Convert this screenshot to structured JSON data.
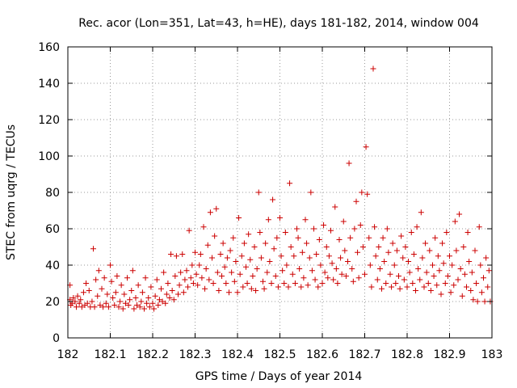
{
  "chart_data": {
    "type": "scatter",
    "title": "Rec. acor (Lon=351, Lat=43, h=HE), days 181-182, 2014, window 004",
    "xlabel": "GPS time / Days of year 2014",
    "ylabel": "STEC from uqrg / TECUs",
    "xlim": [
      182,
      183
    ],
    "ylim": [
      0,
      160
    ],
    "xticks": [
      "182",
      "182.1",
      "182.2",
      "182.3",
      "182.4",
      "182.5",
      "182.6",
      "182.7",
      "182.8",
      "182.9",
      "183"
    ],
    "xtick_values": [
      182,
      182.1,
      182.2,
      182.3,
      182.4,
      182.5,
      182.6,
      182.7,
      182.8,
      182.9,
      183
    ],
    "yticks": [
      "0",
      "20",
      "40",
      "60",
      "80",
      "100",
      "120",
      "140",
      "160"
    ],
    "ytick_values": [
      0,
      20,
      40,
      60,
      80,
      100,
      120,
      140,
      160
    ],
    "grid": true,
    "marker": "+",
    "color": "#cc0000",
    "points": [
      [
        182.005,
        29
      ],
      [
        182.005,
        21
      ],
      [
        182.007,
        18
      ],
      [
        182.01,
        19
      ],
      [
        182.013,
        22
      ],
      [
        182.017,
        20
      ],
      [
        182.02,
        17
      ],
      [
        182.023,
        23
      ],
      [
        182.027,
        19
      ],
      [
        182.03,
        21
      ],
      [
        182.033,
        17
      ],
      [
        182.037,
        25
      ],
      [
        182.04,
        18
      ],
      [
        182.043,
        30
      ],
      [
        182.046,
        19
      ],
      [
        182.05,
        26
      ],
      [
        182.053,
        17
      ],
      [
        182.057,
        20
      ],
      [
        182.06,
        49
      ],
      [
        182.063,
        17
      ],
      [
        182.066,
        32
      ],
      [
        182.07,
        23
      ],
      [
        182.073,
        37
      ],
      [
        182.076,
        18
      ],
      [
        182.08,
        27
      ],
      [
        182.083,
        17
      ],
      [
        182.086,
        33
      ],
      [
        182.09,
        19
      ],
      [
        182.093,
        24
      ],
      [
        182.096,
        17
      ],
      [
        182.1,
        40
      ],
      [
        182.103,
        31
      ],
      [
        182.106,
        22
      ],
      [
        182.11,
        18
      ],
      [
        182.113,
        25
      ],
      [
        182.116,
        34
      ],
      [
        182.12,
        17
      ],
      [
        182.123,
        20
      ],
      [
        182.126,
        29
      ],
      [
        182.13,
        16
      ],
      [
        182.133,
        24
      ],
      [
        182.136,
        19
      ],
      [
        182.14,
        33
      ],
      [
        182.143,
        18
      ],
      [
        182.146,
        21
      ],
      [
        182.15,
        26
      ],
      [
        182.153,
        37
      ],
      [
        182.156,
        16
      ],
      [
        182.16,
        22
      ],
      [
        182.163,
        18
      ],
      [
        182.166,
        29
      ],
      [
        182.17,
        17
      ],
      [
        182.173,
        20
      ],
      [
        182.176,
        25
      ],
      [
        182.18,
        16
      ],
      [
        182.183,
        33
      ],
      [
        182.186,
        19
      ],
      [
        182.19,
        22
      ],
      [
        182.193,
        17
      ],
      [
        182.196,
        28
      ],
      [
        182.2,
        19
      ],
      [
        182.203,
        16
      ],
      [
        182.206,
        23
      ],
      [
        182.21,
        32
      ],
      [
        182.213,
        18
      ],
      [
        182.216,
        21
      ],
      [
        182.22,
        27
      ],
      [
        182.223,
        20
      ],
      [
        182.226,
        36
      ],
      [
        182.23,
        19
      ],
      [
        182.233,
        24
      ],
      [
        182.236,
        30
      ],
      [
        182.24,
        22
      ],
      [
        182.243,
        46
      ],
      [
        182.246,
        26
      ],
      [
        182.25,
        21
      ],
      [
        182.253,
        34
      ],
      [
        182.256,
        45
      ],
      [
        182.26,
        24
      ],
      [
        182.263,
        29
      ],
      [
        182.266,
        36
      ],
      [
        182.27,
        46
      ],
      [
        182.273,
        25
      ],
      [
        182.276,
        32
      ],
      [
        182.28,
        37
      ],
      [
        182.283,
        28
      ],
      [
        182.286,
        59
      ],
      [
        182.29,
        33
      ],
      [
        182.293,
        40
      ],
      [
        182.296,
        30
      ],
      [
        182.3,
        47
      ],
      [
        182.303,
        35
      ],
      [
        182.306,
        29
      ],
      [
        182.31,
        40
      ],
      [
        182.313,
        46
      ],
      [
        182.316,
        33
      ],
      [
        182.32,
        61
      ],
      [
        182.323,
        27
      ],
      [
        182.326,
        38
      ],
      [
        182.33,
        51
      ],
      [
        182.333,
        32
      ],
      [
        182.336,
        69
      ],
      [
        182.34,
        44
      ],
      [
        182.343,
        30
      ],
      [
        182.346,
        56
      ],
      [
        182.35,
        71
      ],
      [
        182.353,
        36
      ],
      [
        182.356,
        26
      ],
      [
        182.36,
        46
      ],
      [
        182.363,
        34
      ],
      [
        182.366,
        52
      ],
      [
        182.37,
        39
      ],
      [
        182.373,
        30
      ],
      [
        182.376,
        44
      ],
      [
        182.38,
        25
      ],
      [
        182.383,
        48
      ],
      [
        182.386,
        36
      ],
      [
        182.39,
        55
      ],
      [
        182.393,
        31
      ],
      [
        182.396,
        42
      ],
      [
        182.4,
        25
      ],
      [
        182.403,
        66
      ],
      [
        182.406,
        35
      ],
      [
        182.41,
        45
      ],
      [
        182.413,
        28
      ],
      [
        182.416,
        52
      ],
      [
        182.42,
        39
      ],
      [
        182.423,
        30
      ],
      [
        182.426,
        57
      ],
      [
        182.43,
        43
      ],
      [
        182.433,
        27
      ],
      [
        182.436,
        34
      ],
      [
        182.44,
        50
      ],
      [
        182.443,
        26
      ],
      [
        182.446,
        38
      ],
      [
        182.45,
        80
      ],
      [
        182.453,
        58
      ],
      [
        182.456,
        44
      ],
      [
        182.46,
        31
      ],
      [
        182.463,
        27
      ],
      [
        182.466,
        52
      ],
      [
        182.47,
        36
      ],
      [
        182.473,
        65
      ],
      [
        182.476,
        42
      ],
      [
        182.48,
        30
      ],
      [
        182.483,
        76
      ],
      [
        182.486,
        49
      ],
      [
        182.49,
        34
      ],
      [
        182.493,
        55
      ],
      [
        182.496,
        28
      ],
      [
        182.5,
        66
      ],
      [
        182.503,
        45
      ],
      [
        182.506,
        37
      ],
      [
        182.51,
        30
      ],
      [
        182.513,
        58
      ],
      [
        182.516,
        40
      ],
      [
        182.52,
        28
      ],
      [
        182.523,
        85
      ],
      [
        182.526,
        50
      ],
      [
        182.53,
        35
      ],
      [
        182.533,
        45
      ],
      [
        182.536,
        30
      ],
      [
        182.54,
        60
      ],
      [
        182.543,
        55
      ],
      [
        182.546,
        38
      ],
      [
        182.55,
        28
      ],
      [
        182.553,
        47
      ],
      [
        182.556,
        33
      ],
      [
        182.56,
        65
      ],
      [
        182.563,
        52
      ],
      [
        182.566,
        29
      ],
      [
        182.57,
        44
      ],
      [
        182.573,
        80
      ],
      [
        182.576,
        37
      ],
      [
        182.58,
        60
      ],
      [
        182.583,
        32
      ],
      [
        182.586,
        46
      ],
      [
        182.59,
        28
      ],
      [
        182.593,
        54
      ],
      [
        182.596,
        40
      ],
      [
        182.6,
        30
      ],
      [
        182.603,
        62
      ],
      [
        182.606,
        36
      ],
      [
        182.61,
        50
      ],
      [
        182.613,
        33
      ],
      [
        182.616,
        45
      ],
      [
        182.62,
        59
      ],
      [
        182.623,
        41
      ],
      [
        182.626,
        32
      ],
      [
        182.63,
        72
      ],
      [
        182.633,
        38
      ],
      [
        182.636,
        30
      ],
      [
        182.64,
        54
      ],
      [
        182.643,
        44
      ],
      [
        182.646,
        35
      ],
      [
        182.65,
        64
      ],
      [
        182.653,
        48
      ],
      [
        182.656,
        34
      ],
      [
        182.66,
        42
      ],
      [
        182.663,
        96
      ],
      [
        182.666,
        55
      ],
      [
        182.67,
        38
      ],
      [
        182.673,
        31
      ],
      [
        182.676,
        60
      ],
      [
        182.68,
        75
      ],
      [
        182.683,
        47
      ],
      [
        182.686,
        33
      ],
      [
        182.69,
        62
      ],
      [
        182.693,
        80
      ],
      [
        182.696,
        50
      ],
      [
        182.7,
        35
      ],
      [
        182.703,
        105
      ],
      [
        182.706,
        79
      ],
      [
        182.71,
        55
      ],
      [
        182.713,
        40
      ],
      [
        182.716,
        28
      ],
      [
        182.72,
        148
      ],
      [
        182.723,
        61
      ],
      [
        182.726,
        45
      ],
      [
        182.73,
        32
      ],
      [
        182.733,
        50
      ],
      [
        182.736,
        38
      ],
      [
        182.74,
        27
      ],
      [
        182.743,
        55
      ],
      [
        182.746,
        42
      ],
      [
        182.75,
        30
      ],
      [
        182.753,
        60
      ],
      [
        182.756,
        47
      ],
      [
        182.76,
        35
      ],
      [
        182.763,
        28
      ],
      [
        182.766,
        52
      ],
      [
        182.77,
        40
      ],
      [
        182.773,
        30
      ],
      [
        182.776,
        48
      ],
      [
        182.78,
        34
      ],
      [
        182.783,
        27
      ],
      [
        182.786,
        56
      ],
      [
        182.79,
        44
      ],
      [
        182.793,
        32
      ],
      [
        182.796,
        50
      ],
      [
        182.8,
        28
      ],
      [
        182.803,
        42
      ],
      [
        182.806,
        36
      ],
      [
        182.81,
        58
      ],
      [
        182.813,
        30
      ],
      [
        182.816,
        46
      ],
      [
        182.82,
        26
      ],
      [
        182.823,
        61
      ],
      [
        182.826,
        38
      ],
      [
        182.83,
        32
      ],
      [
        182.833,
        69
      ],
      [
        182.836,
        44
      ],
      [
        182.84,
        28
      ],
      [
        182.843,
        52
      ],
      [
        182.846,
        36
      ],
      [
        182.85,
        30
      ],
      [
        182.853,
        48
      ],
      [
        182.856,
        26
      ],
      [
        182.86,
        40
      ],
      [
        182.863,
        34
      ],
      [
        182.866,
        55
      ],
      [
        182.87,
        29
      ],
      [
        182.873,
        45
      ],
      [
        182.876,
        37
      ],
      [
        182.88,
        24
      ],
      [
        182.883,
        52
      ],
      [
        182.886,
        41
      ],
      [
        182.89,
        30
      ],
      [
        182.893,
        58
      ],
      [
        182.896,
        34
      ],
      [
        182.9,
        45
      ],
      [
        182.903,
        25
      ],
      [
        182.906,
        40
      ],
      [
        182.91,
        29
      ],
      [
        182.913,
        64
      ],
      [
        182.916,
        48
      ],
      [
        182.92,
        32
      ],
      [
        182.923,
        68
      ],
      [
        182.926,
        38
      ],
      [
        182.93,
        23
      ],
      [
        182.933,
        50
      ],
      [
        182.936,
        35
      ],
      [
        182.94,
        28
      ],
      [
        182.943,
        58
      ],
      [
        182.946,
        42
      ],
      [
        182.95,
        26
      ],
      [
        182.953,
        36
      ],
      [
        182.956,
        21
      ],
      [
        182.96,
        48
      ],
      [
        182.963,
        30
      ],
      [
        182.966,
        20
      ],
      [
        182.97,
        61
      ],
      [
        182.973,
        40
      ],
      [
        182.976,
        25
      ],
      [
        182.98,
        33
      ],
      [
        182.983,
        20
      ],
      [
        182.986,
        44
      ],
      [
        182.99,
        28
      ],
      [
        182.993,
        37
      ],
      [
        182.996,
        20
      ]
    ]
  }
}
